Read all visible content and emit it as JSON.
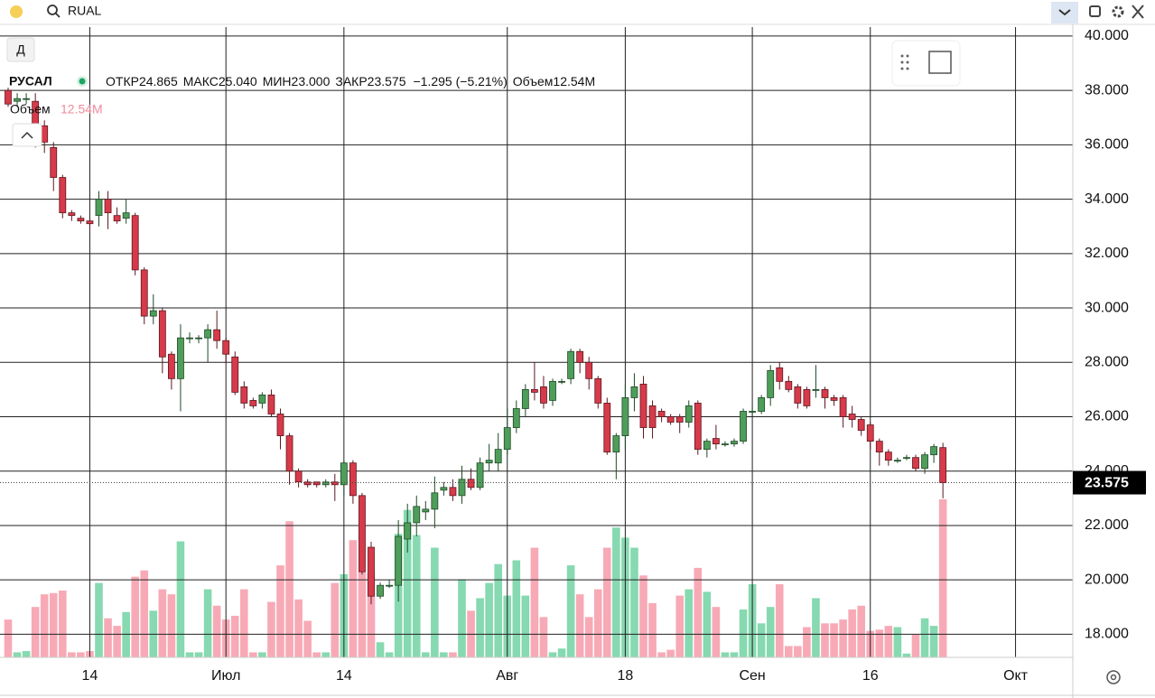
{
  "toolbar": {
    "search": "RUAL",
    "interval": "Д"
  },
  "legend": {
    "symbol": "РУСАЛ",
    "open_label": "ОТКР",
    "open": "24.865",
    "high_label": "МАКС",
    "high": "25.040",
    "low_label": "МИН",
    "low": "23.000",
    "close_label": "ЗАКР",
    "close": "23.575",
    "change": "−1.295 (−5.21%)",
    "volume": "12.54M"
  },
  "chart_data": {
    "type": "candlestick",
    "categories": [
      null,
      null,
      null,
      null,
      null,
      null,
      null,
      null,
      null,
      "14",
      null,
      null,
      null,
      null,
      null,
      null,
      null,
      null,
      null,
      null,
      null,
      null,
      null,
      null,
      "Июл",
      null,
      null,
      null,
      null,
      null,
      null,
      null,
      null,
      null,
      null,
      null,
      null,
      "14",
      null,
      null,
      null,
      null,
      null,
      null,
      null,
      null,
      null,
      null,
      null,
      null,
      null,
      null,
      null,
      null,
      null,
      "Авг",
      null,
      null,
      null,
      null,
      null,
      null,
      null,
      null,
      null,
      null,
      null,
      null,
      "18",
      null,
      null,
      null,
      null,
      null,
      null,
      null,
      null,
      null,
      null,
      null,
      null,
      null,
      "Сен",
      null,
      null,
      null,
      null,
      null,
      null,
      null,
      null,
      null,
      null,
      null,
      null,
      "16",
      null,
      null,
      null,
      null,
      null,
      null,
      null,
      null,
      null,
      null,
      null,
      null,
      null,
      null,
      null,
      "Окт",
      null,
      null,
      null,
      null,
      null
    ],
    "open": [
      38.0,
      37.6,
      37.7,
      37.6,
      36.7,
      35.9,
      34.8,
      33.5,
      33.3,
      33.2,
      33.4,
      34.0,
      33.4,
      33.3,
      33.4,
      31.4,
      29.7,
      29.9,
      28.3,
      27.4,
      28.9,
      28.9,
      28.9,
      29.2,
      28.8,
      28.2,
      27.1,
      26.6,
      26.5,
      26.8,
      26.1,
      25.3,
      24.0,
      23.6,
      23.6,
      23.5,
      23.6,
      23.5,
      24.3,
      23.1,
      21.2,
      19.4,
      19.8,
      19.8,
      21.5,
      22.1,
      22.5,
      22.6,
      23.3,
      23.4,
      23.1,
      23.7,
      23.4,
      24.3,
      24.3,
      24.8,
      25.6,
      26.3,
      27.0,
      27.1,
      26.6,
      27.3,
      27.4,
      28.4,
      28.0,
      27.4,
      26.5,
      24.7,
      25.3,
      26.7,
      27.2,
      26.4,
      26.2,
      26.0,
      26.0,
      25.8,
      26.5,
      24.8,
      25.2,
      25.0,
      25.0,
      25.1,
      26.2,
      26.2,
      26.7,
      27.8,
      27.3,
      27.1,
      27.0,
      27.0,
      27.0,
      26.7,
      26.7,
      26.1,
      25.9,
      25.7,
      25.1,
      24.7,
      24.4,
      24.5,
      24.5,
      24.1,
      24.6,
      24.865,
      null,
      null,
      null,
      null,
      null,
      null,
      null,
      null,
      null,
      null,
      null,
      null,
      null
    ],
    "high": [
      38.1,
      37.9,
      37.9,
      37.9,
      36.9,
      36.1,
      34.9,
      33.6,
      33.4,
      33.3,
      34.3,
      34.3,
      33.7,
      34.0,
      33.5,
      31.5,
      30.5,
      30.0,
      28.4,
      29.4,
      29.1,
      29.0,
      29.4,
      29.9,
      28.9,
      28.4,
      27.3,
      26.7,
      26.9,
      27.0,
      26.3,
      25.4,
      24.1,
      23.7,
      23.6,
      23.7,
      23.9,
      24.4,
      24.4,
      23.2,
      21.4,
      19.9,
      20.0,
      22.2,
      22.8,
      23.1,
      22.9,
      23.8,
      23.6,
      23.7,
      24.2,
      24.1,
      24.5,
      25.0,
      25.4,
      26.3,
      26.6,
      27.2,
      28.0,
      27.5,
      27.4,
      27.4,
      28.5,
      28.5,
      28.2,
      27.5,
      26.7,
      25.4,
      27.2,
      27.6,
      27.5,
      26.6,
      26.3,
      26.1,
      26.1,
      26.6,
      26.6,
      25.2,
      25.7,
      25.1,
      25.2,
      26.3,
      26.4,
      26.8,
      27.9,
      28.0,
      27.5,
      27.2,
      27.1,
      27.9,
      27.1,
      26.8,
      26.8,
      26.4,
      26.0,
      25.8,
      25.2,
      24.8,
      24.5,
      24.6,
      24.6,
      24.7,
      25.0,
      25.04,
      null,
      null,
      null,
      null,
      null,
      null,
      null,
      null,
      null,
      null,
      null,
      null,
      null
    ],
    "low": [
      37.4,
      37.4,
      37.5,
      35.9,
      35.7,
      34.3,
      33.3,
      33.2,
      33.1,
      32.9,
      33.0,
      32.9,
      33.1,
      33.1,
      31.2,
      29.4,
      29.4,
      27.6,
      27.0,
      26.2,
      28.7,
      28.7,
      28.0,
      28.5,
      28.0,
      26.8,
      26.3,
      26.3,
      26.3,
      26.0,
      24.8,
      23.5,
      23.4,
      23.4,
      23.4,
      23.4,
      22.9,
      23.1,
      22.8,
      20.2,
      19.1,
      19.3,
      19.7,
      19.2,
      21.0,
      21.6,
      22.2,
      21.9,
      23.1,
      22.9,
      22.8,
      23.3,
      23.3,
      24.0,
      24.0,
      24.6,
      25.4,
      26.0,
      26.6,
      26.3,
      26.4,
      27.2,
      27.2,
      27.6,
      27.0,
      26.3,
      24.6,
      23.7,
      24.8,
      26.2,
      25.2,
      25.2,
      25.8,
      25.7,
      25.4,
      25.6,
      24.6,
      24.5,
      24.8,
      24.9,
      24.9,
      25.0,
      26.0,
      26.1,
      26.4,
      27.0,
      26.9,
      26.3,
      26.3,
      26.7,
      26.3,
      26.4,
      25.6,
      25.6,
      25.3,
      24.8,
      24.2,
      24.2,
      24.3,
      24.4,
      24.0,
      23.9,
      24.3,
      23.0,
      null,
      null,
      null,
      null,
      null,
      null,
      null,
      null,
      null,
      null,
      null,
      null,
      null
    ],
    "close": [
      37.5,
      37.7,
      37.7,
      36.2,
      36.1,
      34.8,
      33.5,
      33.4,
      33.2,
      33.1,
      34.0,
      33.5,
      33.2,
      33.5,
      31.4,
      29.7,
      29.9,
      28.2,
      27.4,
      28.9,
      28.9,
      28.9,
      29.2,
      28.8,
      28.3,
      26.9,
      26.5,
      26.4,
      26.8,
      26.1,
      25.3,
      24.0,
      23.6,
      23.5,
      23.5,
      23.6,
      23.5,
      24.3,
      23.1,
      20.3,
      19.4,
      19.8,
      19.8,
      21.6,
      22.1,
      22.7,
      22.6,
      23.2,
      23.4,
      23.1,
      23.7,
      23.4,
      24.3,
      24.4,
      24.8,
      25.6,
      26.3,
      27.0,
      26.9,
      26.5,
      27.3,
      27.3,
      28.4,
      28.0,
      27.4,
      26.5,
      24.7,
      25.3,
      26.7,
      27.1,
      25.6,
      25.6,
      26.0,
      25.8,
      25.8,
      26.4,
      24.8,
      25.1,
      25.0,
      25.0,
      25.1,
      26.2,
      26.2,
      26.7,
      27.7,
      27.3,
      27.0,
      26.5,
      26.4,
      27.0,
      26.7,
      26.6,
      26.0,
      25.9,
      25.5,
      25.1,
      24.7,
      24.4,
      24.4,
      24.5,
      24.1,
      24.6,
      24.9,
      23.575,
      null,
      null,
      null,
      null,
      null,
      null,
      null,
      null,
      null,
      null,
      null,
      null,
      null
    ],
    "volume": {
      "name": "Объем",
      "ylim": [
        0,
        50
      ],
      "values": [
        3.0,
        0.4,
        0.5,
        4.0,
        5.0,
        5.1,
        5.3,
        0.4,
        0.4,
        0.5,
        5.9,
        3.1,
        2.5,
        3.6,
        6.4,
        6.9,
        3.7,
        5.4,
        5.0,
        9.2,
        0.4,
        0.4,
        5.4,
        4.1,
        3.0,
        3.3,
        5.4,
        0.4,
        0.4,
        4.4,
        7.3,
        10.8,
        4.6,
        2.9,
        0.4,
        0.4,
        5.9,
        6.6,
        9.3,
        6.8,
        6.7,
        1.2,
        0.4,
        9.8,
        11.7,
        9.7,
        0.4,
        8.7,
        0.4,
        0.4,
        6.2,
        3.7,
        4.7,
        5.9,
        7.4,
        4.9,
        7.7,
        4.9,
        8.7,
        3.2,
        0.4,
        0.7,
        7.3,
        5.0,
        3.2,
        5.4,
        8.7,
        10.3,
        9.5,
        8.7,
        6.5,
        4.3,
        0.4,
        0.6,
        4.9,
        5.4,
        7.1,
        5.2,
        4.0,
        0.4,
        0.4,
        3.8,
        5.8,
        2.7,
        4.0,
        5.8,
        0.9,
        0.9,
        2.4,
        4.7,
        2.7,
        2.7,
        3.0,
        3.8,
        4.1,
        2.1,
        2.2,
        2.5,
        2.4,
        0.3,
        1.8,
        3.1,
        2.5,
        12.54,
        null,
        null,
        null,
        null,
        null,
        null,
        null,
        null,
        null,
        null,
        null,
        null,
        null
      ]
    },
    "up_color": "#4f9d5a",
    "down_color": "#d73a4a",
    "volume_up_color": "#86d9b0",
    "volume_down_color": "#f7aab6",
    "ylim": [
      17.15,
      40.33
    ],
    "yticks": [
      {
        "value": 18,
        "label": "18.000"
      },
      {
        "value": 20,
        "label": "20.000"
      },
      {
        "value": 22,
        "label": "22.000"
      },
      {
        "value": 24,
        "label": "24.000"
      },
      {
        "value": 26,
        "label": "26.000"
      },
      {
        "value": 28,
        "label": "28.000"
      },
      {
        "value": 30,
        "label": "30.000"
      },
      {
        "value": 32,
        "label": "32.000"
      },
      {
        "value": 34,
        "label": "34.000"
      },
      {
        "value": 36,
        "label": "36.000"
      },
      {
        "value": 38,
        "label": "38.000"
      },
      {
        "value": 40,
        "label": "40.000"
      }
    ],
    "grid": true
  }
}
